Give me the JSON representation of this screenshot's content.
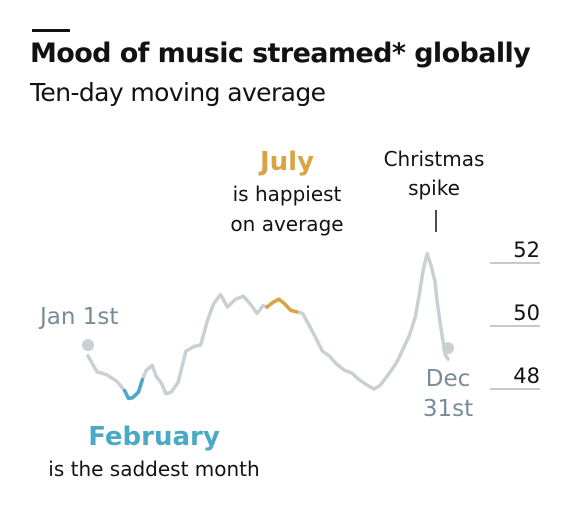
{
  "title": "Mood of music streamed* globally",
  "subtitle": "Ten-day moving average",
  "colors": {
    "line": "#c9d0d3",
    "february": "#4aa9c4",
    "july": "#d9a443",
    "label": "#798b97",
    "text": "#121212",
    "tick": "#8c959b"
  },
  "chart_data": {
    "type": "line",
    "title": "Mood of music streamed* globally",
    "subtitle": "Ten-day moving average",
    "xlabel": "",
    "ylabel": "",
    "x_start": "Jan 1st",
    "x_end": "Dec 31st",
    "ylim": [
      47.4,
      53.8
    ],
    "y_ticks": [
      48,
      50,
      52
    ],
    "y_tick_labels": [
      "48",
      "50",
      "52"
    ],
    "grid": false,
    "x": [
      1,
      10,
      20,
      30,
      38,
      42,
      46,
      52,
      56,
      60,
      66,
      70,
      75,
      80,
      85,
      92,
      100,
      108,
      115,
      122,
      128,
      135,
      142,
      150,
      158,
      165,
      172,
      178,
      182,
      188,
      194,
      200,
      206,
      212,
      218,
      225,
      230,
      238,
      245,
      252,
      260,
      268,
      275,
      282,
      290,
      296,
      302,
      308,
      314,
      320,
      326,
      332,
      336,
      340,
      344,
      348,
      352,
      354,
      357,
      360,
      362,
      365
    ],
    "y": [
      49.05,
      48.55,
      48.45,
      48.25,
      47.95,
      47.7,
      47.72,
      47.9,
      48.3,
      48.6,
      48.75,
      48.4,
      48.2,
      47.85,
      47.9,
      48.2,
      49.2,
      49.35,
      49.4,
      50.2,
      50.7,
      51.0,
      50.6,
      50.85,
      50.95,
      50.7,
      50.4,
      50.65,
      50.6,
      50.75,
      50.85,
      50.7,
      50.5,
      50.45,
      50.4,
      50.0,
      49.7,
      49.2,
      49.05,
      48.8,
      48.6,
      48.5,
      48.3,
      48.15,
      48.0,
      48.1,
      48.35,
      48.6,
      48.9,
      49.3,
      49.7,
      50.3,
      51.0,
      51.8,
      52.3,
      51.9,
      51.4,
      50.8,
      50.1,
      49.5,
      49.1,
      48.95
    ],
    "highlights": [
      {
        "label": "February",
        "color": "#4aa9c4",
        "x_range": [
          32,
          59
        ]
      },
      {
        "label": "July",
        "color": "#d9a443",
        "x_range": [
          182,
          212
        ]
      }
    ],
    "annotations": {
      "start": "Jan 1st",
      "end_line1": "Dec",
      "end_line2": "31st",
      "february_title": "February",
      "february_text": "is the saddest month",
      "july_title": "July",
      "july_text_1": "is happiest",
      "july_text_2": "on average",
      "christmas_1": "Christmas",
      "christmas_2": "spike"
    }
  }
}
